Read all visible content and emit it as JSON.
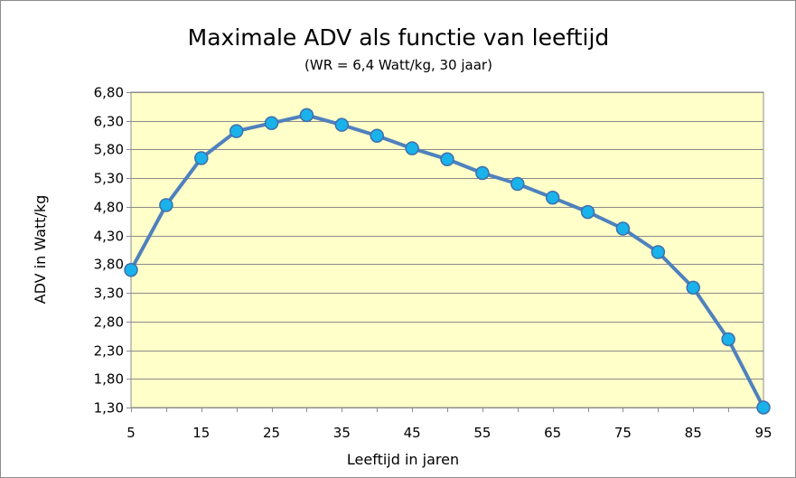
{
  "chart_data": {
    "type": "line",
    "title": "Maximale ADV als functie van leeftijd",
    "subtitle": "(WR = 6,4 Watt/kg, 30 jaar)",
    "xlabel": "Leeftijd in jaren",
    "ylabel": "ADV in Watt/kg",
    "x": [
      5,
      10,
      15,
      20,
      25,
      30,
      35,
      40,
      45,
      50,
      55,
      60,
      65,
      70,
      75,
      80,
      85,
      90,
      95
    ],
    "series": [
      {
        "values": [
          3.7,
          4.83,
          5.65,
          6.12,
          6.26,
          6.4,
          6.23,
          6.04,
          5.82,
          5.63,
          5.39,
          5.2,
          4.96,
          4.71,
          4.42,
          4.01,
          3.39,
          2.49,
          1.3
        ]
      }
    ],
    "xticks": [
      "5",
      "15",
      "25",
      "35",
      "45",
      "55",
      "65",
      "75",
      "85",
      "95"
    ],
    "yticks": [
      "1,30",
      "1,80",
      "2,30",
      "2,80",
      "3,30",
      "3,80",
      "4,30",
      "4,80",
      "5,30",
      "5,80",
      "6,30",
      "6,80"
    ],
    "xlim": [
      5,
      95
    ],
    "ylim": [
      1.3,
      6.8
    ],
    "grid": true,
    "legend": "none",
    "colors": {
      "plot_background": "#ffffc9",
      "line": "#4f81bd",
      "marker_fill": "#1ab2ea",
      "marker_stroke": "#3f6fab",
      "grid": "#8c8c8c"
    }
  }
}
